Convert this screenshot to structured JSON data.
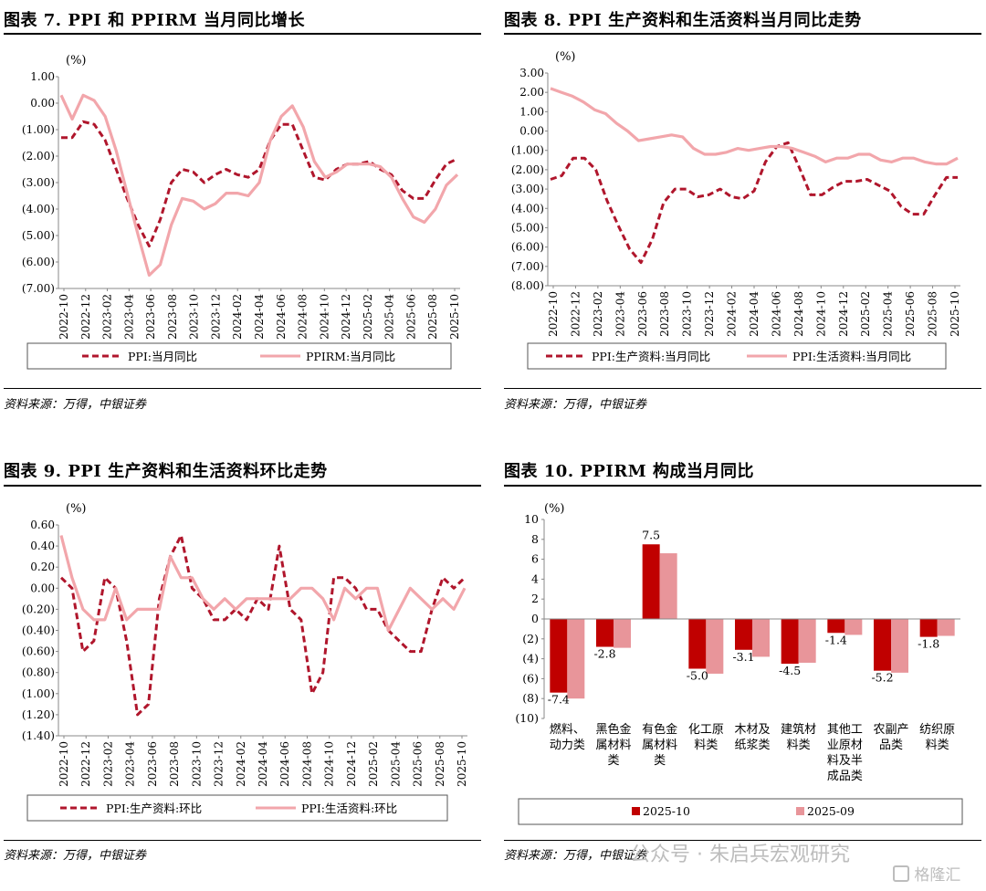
{
  "colors": {
    "dark": "#b0162c",
    "light": "#f2a6ab",
    "bar_dark": "#c00000",
    "bar_light": "#e8959a"
  },
  "source_text": "资料来源：万得，中银证券",
  "watermark": {
    "text": "公众号 · 朱启兵宏观研究",
    "logo_text": "格隆汇"
  },
  "panels": [
    {
      "title": "图表 7. PPI 和 PPIRM 当月同比增长",
      "unit": "(%)",
      "chart_data": {
        "type": "line",
        "x_labels": [
          "2022-10",
          "2022-12",
          "2023-02",
          "2023-04",
          "2023-06",
          "2023-08",
          "2023-10",
          "2023-12",
          "2024-02",
          "2024-04",
          "2024-06",
          "2024-08",
          "2024-10",
          "2024-12",
          "2025-02",
          "2025-04",
          "2025-06",
          "2025-08",
          "2025-10"
        ],
        "y_ticks": [
          "1.00",
          "0.00",
          "(1.00)",
          "(2.00)",
          "(3.00)",
          "(4.00)",
          "(5.00)",
          "(6.00)",
          "(7.00)"
        ],
        "ylim": [
          -7,
          1
        ],
        "series": [
          {
            "name": "PPI:当月同比",
            "style": "dashed",
            "color": "#b0162c",
            "values": [
              -1.3,
              -1.3,
              -0.7,
              -0.8,
              -1.4,
              -2.5,
              -3.6,
              -4.6,
              -5.4,
              -4.4,
              -3.0,
              -2.5,
              -2.6,
              -3.0,
              -2.7,
              -2.5,
              -2.7,
              -2.8,
              -2.5,
              -1.4,
              -0.8,
              -0.8,
              -1.8,
              -2.8,
              -2.9,
              -2.5,
              -2.3,
              -2.3,
              -2.2,
              -2.5,
              -2.7,
              -3.3,
              -3.6,
              -3.6,
              -2.9,
              -2.3,
              -2.1
            ]
          },
          {
            "name": "PPIRM:当月同比",
            "style": "solid",
            "color": "#f2a6ab",
            "values": [
              0.3,
              -0.6,
              0.3,
              0.1,
              -0.5,
              -1.8,
              -3.4,
              -5.0,
              -6.5,
              -6.1,
              -4.6,
              -3.6,
              -3.7,
              -4.0,
              -3.8,
              -3.4,
              -3.4,
              -3.5,
              -3.0,
              -1.4,
              -0.5,
              -0.1,
              -0.9,
              -2.2,
              -2.8,
              -2.6,
              -2.3,
              -2.3,
              -2.3,
              -2.4,
              -2.8,
              -3.6,
              -4.3,
              -4.5,
              -4.0,
              -3.1,
              -2.7
            ]
          }
        ]
      }
    },
    {
      "title": "图表 8. PPI 生产资料和生活资料当月同比走势",
      "unit": "(%)",
      "chart_data": {
        "type": "line",
        "x_labels": [
          "2022-10",
          "2022-12",
          "2023-02",
          "2023-04",
          "2023-06",
          "2023-08",
          "2023-10",
          "2023-12",
          "2024-02",
          "2024-04",
          "2024-06",
          "2024-08",
          "2024-10",
          "2024-12",
          "2025-02",
          "2025-04",
          "2025-06",
          "2025-08",
          "2025-10"
        ],
        "y_ticks": [
          "3.00",
          "2.00",
          "1.00",
          "0.00",
          "(1.00)",
          "(2.00)",
          "(3.00)",
          "(4.00)",
          "(5.00)",
          "(6.00)",
          "(7.00)",
          "(8.00)"
        ],
        "ylim": [
          -8,
          3
        ],
        "series": [
          {
            "name": "PPI:生产资料:当月同比",
            "style": "dashed",
            "color": "#b0162c",
            "values": [
              -2.5,
              -2.3,
              -1.4,
              -1.4,
              -2.0,
              -3.6,
              -4.9,
              -6.1,
              -6.8,
              -5.6,
              -3.7,
              -3.0,
              -3.0,
              -3.4,
              -3.3,
              -3.0,
              -3.4,
              -3.5,
              -3.1,
              -1.6,
              -0.8,
              -0.6,
              -1.9,
              -3.3,
              -3.3,
              -2.9,
              -2.6,
              -2.6,
              -2.5,
              -2.8,
              -3.1,
              -3.9,
              -4.3,
              -4.3,
              -3.3,
              -2.4,
              -2.4
            ]
          },
          {
            "name": "PPI:生活资料:当月同比",
            "style": "solid",
            "color": "#f2a6ab",
            "values": [
              2.2,
              2.0,
              1.8,
              1.5,
              1.1,
              0.9,
              0.4,
              0.0,
              -0.5,
              -0.4,
              -0.3,
              -0.2,
              -0.3,
              -0.9,
              -1.2,
              -1.2,
              -1.1,
              -0.9,
              -1.0,
              -0.9,
              -0.8,
              -0.8,
              -0.9,
              -1.1,
              -1.3,
              -1.6,
              -1.4,
              -1.4,
              -1.2,
              -1.2,
              -1.5,
              -1.6,
              -1.4,
              -1.4,
              -1.6,
              -1.7,
              -1.7,
              -1.4
            ]
          }
        ]
      }
    },
    {
      "title": "图表 9. PPI 生产资料和生活资料环比走势",
      "unit": "(%)",
      "chart_data": {
        "type": "line",
        "x_labels": [
          "2022-10",
          "2022-12",
          "2023-02",
          "2023-04",
          "2023-06",
          "2023-08",
          "2023-10",
          "2023-12",
          "2024-02",
          "2024-04",
          "2024-06",
          "2024-08",
          "2024-10",
          "2024-12",
          "2025-02",
          "2025-04",
          "2025-06",
          "2025-08",
          "2025-10"
        ],
        "y_ticks": [
          "0.60",
          "0.40",
          "0.20",
          "0.00",
          "(0.20)",
          "(0.40)",
          "(0.60)",
          "(0.80)",
          "(1.00)",
          "(1.20)",
          "(1.40)"
        ],
        "ylim": [
          -1.4,
          0.6
        ],
        "series": [
          {
            "name": "PPI:生产资料:环比",
            "style": "dashed",
            "color": "#b0162c",
            "values": [
              0.1,
              0.0,
              -0.6,
              -0.5,
              0.1,
              0.0,
              -0.5,
              -1.2,
              -1.1,
              -0.1,
              0.3,
              0.5,
              0.0,
              -0.1,
              -0.3,
              -0.3,
              -0.2,
              -0.3,
              -0.1,
              -0.2,
              0.4,
              -0.2,
              -0.3,
              -1.0,
              -0.8,
              0.1,
              0.1,
              0.0,
              -0.2,
              -0.2,
              -0.4,
              -0.5,
              -0.6,
              -0.6,
              -0.2,
              0.1,
              0.0,
              0.1
            ]
          },
          {
            "name": "PPI:生活资料:环比",
            "style": "solid",
            "color": "#f2a6ab",
            "values": [
              0.5,
              0.1,
              -0.2,
              -0.3,
              -0.3,
              0.0,
              -0.3,
              -0.2,
              -0.2,
              -0.2,
              0.3,
              0.1,
              0.1,
              -0.1,
              -0.2,
              -0.1,
              -0.2,
              -0.1,
              -0.1,
              -0.1,
              -0.1,
              -0.1,
              0.0,
              0.0,
              -0.1,
              -0.3,
              0.0,
              -0.1,
              0.0,
              0.0,
              -0.4,
              -0.2,
              0.0,
              -0.1,
              -0.2,
              -0.1,
              -0.2,
              0.0
            ]
          }
        ]
      }
    },
    {
      "title": "图表 10. PPIRM 构成当月同比",
      "unit": "(%)",
      "chart_data": {
        "type": "bar",
        "categories": [
          [
            "燃料、",
            "动力类"
          ],
          [
            "黑色金",
            "属材料",
            "类"
          ],
          [
            "有色金",
            "属材料",
            "类"
          ],
          [
            "化工原",
            "料类"
          ],
          [
            "木材及",
            "纸浆类"
          ],
          [
            "建筑材",
            "料类"
          ],
          [
            "其他工",
            "业原材",
            "料及半",
            "成品类"
          ],
          [
            "农副产",
            "品类"
          ],
          [
            "纺织原",
            "料类"
          ]
        ],
        "y_ticks": [
          "10",
          "8",
          "6",
          "4",
          "2",
          "0",
          "(2)",
          "(4)",
          "(6)",
          "(8)",
          "(10)"
        ],
        "ylim": [
          -10,
          10
        ],
        "series": [
          {
            "name": "2025-10",
            "color": "#c00000",
            "values": [
              -7.4,
              -2.8,
              7.5,
              -5.0,
              -3.1,
              -4.5,
              -1.4,
              -5.2,
              -1.8
            ]
          },
          {
            "name": "2025-09",
            "color": "#e8959a",
            "values": [
              -8.0,
              -2.9,
              6.6,
              -5.5,
              -3.8,
              -4.4,
              -1.6,
              -5.4,
              -1.7
            ]
          }
        ],
        "data_labels": [
          "-7.4",
          "-2.8",
          "7.5",
          "-5.0",
          "-3.1",
          "-4.5",
          "-1.4",
          "-5.2",
          "-1.8"
        ]
      }
    }
  ]
}
